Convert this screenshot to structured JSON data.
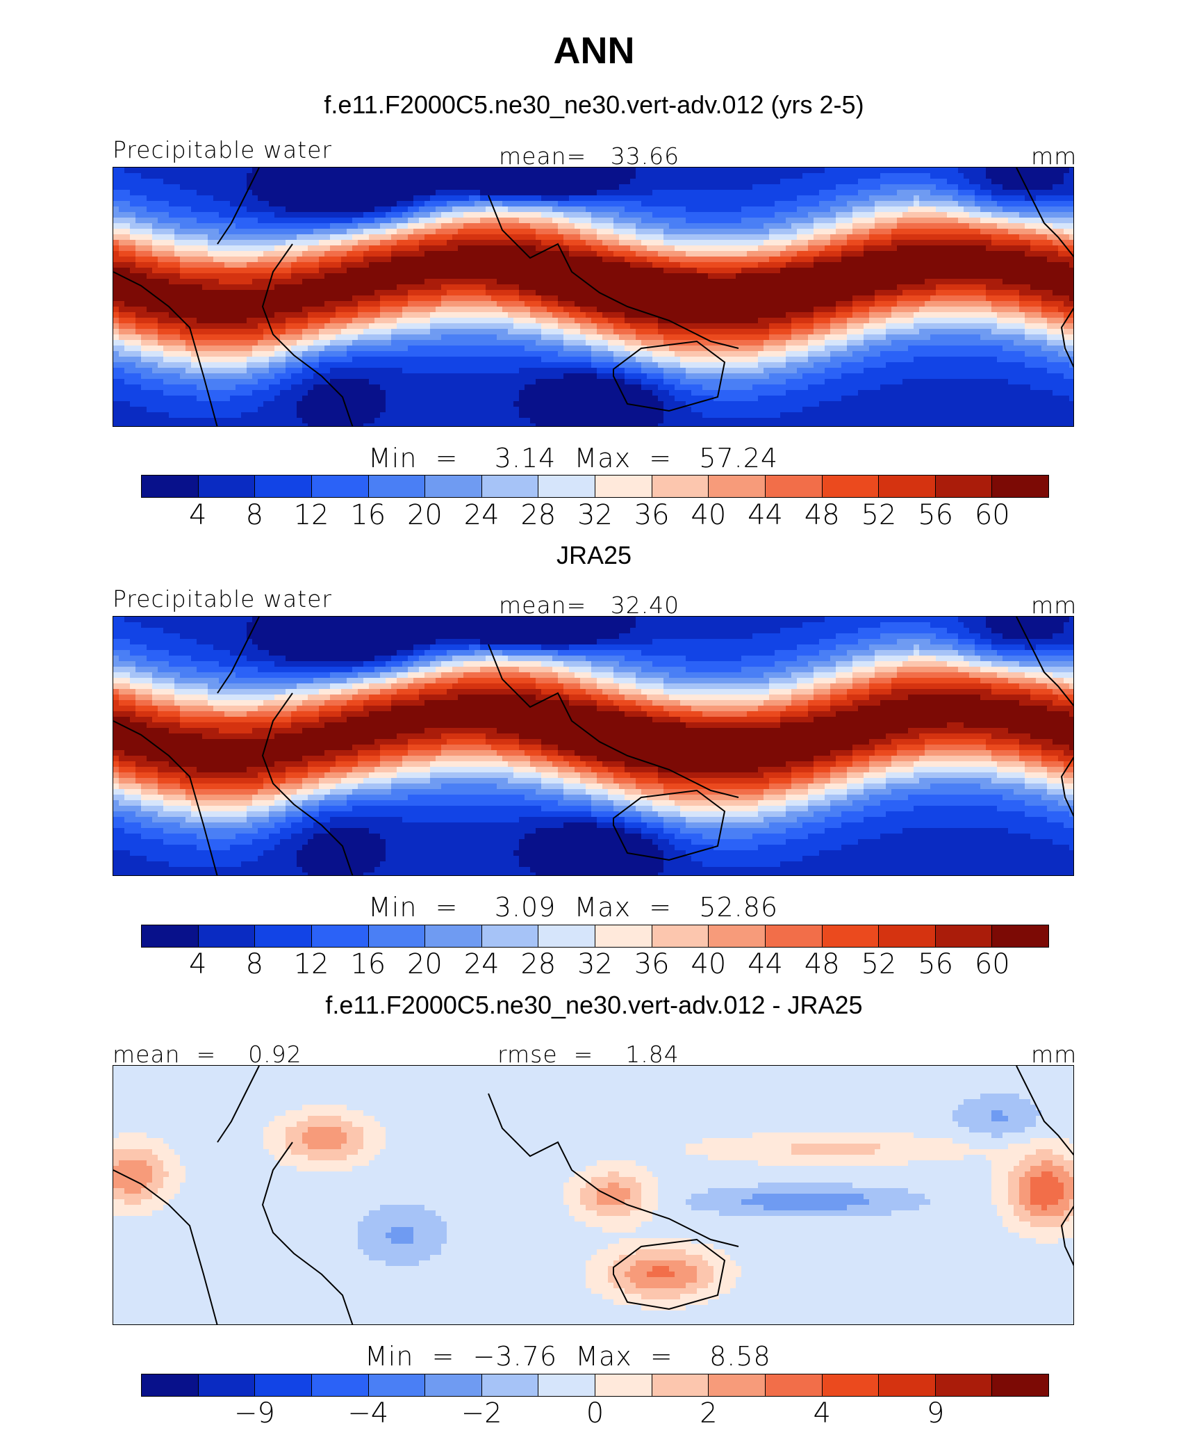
{
  "title": "ANN",
  "colormap": [
    "#08118b",
    "#0a2bc2",
    "#1244e6",
    "#2b62f7",
    "#4a7ff5",
    "#6f9bf2",
    "#a6c3f7",
    "#d6e5fb",
    "#ffe9db",
    "#fcc6ae",
    "#f79b7a",
    "#f26e49",
    "#eb4a1e",
    "#d53310",
    "#aa1c0a",
    "#7c0a05"
  ],
  "chart_data": [
    {
      "type": "heatmap",
      "title": "f.e11.F2000C5.ne30_ne30.vert-adv.012 (yrs 2-5)",
      "left_label": "Precipitable water",
      "center_label": "mean=   33.66",
      "units": "mm",
      "variable": "Precipitable water",
      "mean": 33.66,
      "min": 3.14,
      "max": 57.24,
      "minmax_label": "Min  =    3.14  Max  =   57.24",
      "colorbar_ticks": [
        "4",
        "8",
        "12",
        "16",
        "20",
        "24",
        "28",
        "32",
        "36",
        "40",
        "44",
        "48",
        "52",
        "56",
        "60"
      ],
      "colorbar_levels": [
        4,
        8,
        12,
        16,
        20,
        24,
        28,
        32,
        36,
        40,
        44,
        48,
        52,
        56,
        60
      ]
    },
    {
      "type": "heatmap",
      "title": "JRA25",
      "left_label": "Precipitable water",
      "center_label": "mean=   32.40",
      "units": "mm",
      "variable": "Precipitable water",
      "mean": 32.4,
      "min": 3.09,
      "max": 52.86,
      "minmax_label": "Min  =    3.09  Max  =   52.86",
      "colorbar_ticks": [
        "4",
        "8",
        "12",
        "16",
        "20",
        "24",
        "28",
        "32",
        "36",
        "40",
        "44",
        "48",
        "52",
        "56",
        "60"
      ],
      "colorbar_levels": [
        4,
        8,
        12,
        16,
        20,
        24,
        28,
        32,
        36,
        40,
        44,
        48,
        52,
        56,
        60
      ]
    },
    {
      "type": "heatmap",
      "title": "f.e11.F2000C5.ne30_ne30.vert-adv.012 - JRA25",
      "left_label": "mean  =    0.92",
      "center_label": "rmse  =    1.84",
      "units": "mm",
      "mean": 0.92,
      "rmse": 1.84,
      "min": -3.76,
      "max": 8.58,
      "minmax_label": "Min  =  −3.76  Max  =    8.58",
      "colorbar_ticks": [
        "−9",
        "−4",
        "−2",
        "0",
        "2",
        "4",
        "9"
      ],
      "colorbar_tick_slots": [
        2,
        4,
        6,
        8,
        10,
        12,
        14
      ]
    }
  ]
}
